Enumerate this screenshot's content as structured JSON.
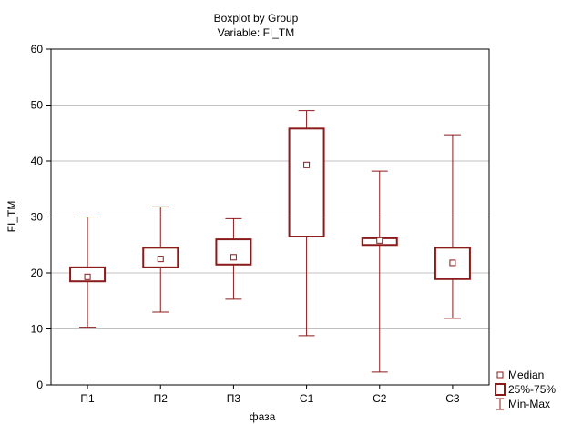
{
  "chart_data": {
    "type": "boxplot",
    "title": "Boxplot by Group",
    "subtitle": "Variable: FI_TM",
    "xlabel": "фаза",
    "ylabel": "FI_TM",
    "ylim": [
      0,
      60
    ],
    "yticks": [
      0,
      10,
      20,
      30,
      40,
      50,
      60
    ],
    "grid": true,
    "legend_position": "bottom-right",
    "colors": {
      "series": "#8b1a1a",
      "grid": "#c0c0c0",
      "frame": "#000000"
    },
    "categories": [
      "П1",
      "П2",
      "П3",
      "С1",
      "С2",
      "С3"
    ],
    "groups": [
      {
        "label": "П1",
        "min": 10.3,
        "q1": 18.5,
        "median": 19.3,
        "q3": 21.0,
        "max": 30.0
      },
      {
        "label": "П2",
        "min": 13.0,
        "q1": 21.0,
        "median": 22.5,
        "q3": 24.5,
        "max": 31.8
      },
      {
        "label": "П3",
        "min": 15.3,
        "q1": 21.5,
        "median": 22.8,
        "q3": 26.0,
        "max": 29.7
      },
      {
        "label": "С1",
        "min": 8.8,
        "q1": 26.5,
        "median": 39.3,
        "q3": 45.8,
        "max": 49.0
      },
      {
        "label": "С2",
        "min": 2.3,
        "q1": 25.0,
        "median": 25.8,
        "q3": 26.2,
        "max": 38.2
      },
      {
        "label": "С3",
        "min": 11.9,
        "q1": 18.9,
        "median": 21.8,
        "q3": 24.5,
        "max": 44.7
      }
    ],
    "legend": [
      {
        "key": "median",
        "label": "Median"
      },
      {
        "key": "box",
        "label": "25%-75%"
      },
      {
        "key": "whisker",
        "label": "Min-Max"
      }
    ]
  }
}
